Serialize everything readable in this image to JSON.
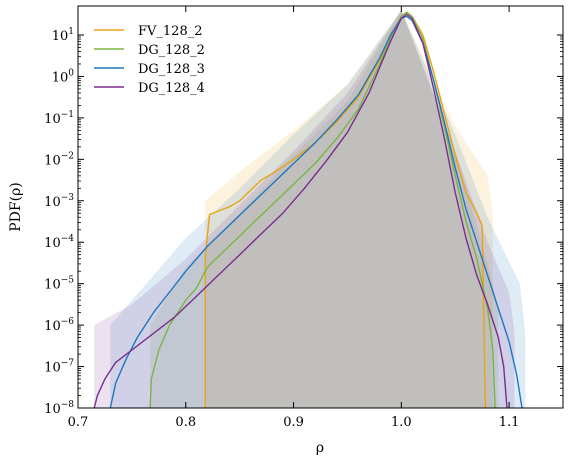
{
  "chart_data": {
    "type": "line",
    "title": "",
    "xlabel": "ρ",
    "ylabel": "PDF(ρ)",
    "xlim": [
      0.7,
      1.15
    ],
    "ylim_log10": [
      -8,
      1.7
    ],
    "y_scale": "log",
    "grid": false,
    "legend_position": "top-left",
    "x_ticks": [
      0.7,
      0.8,
      0.9,
      1.0,
      1.1
    ],
    "x_tick_labels": [
      "0.7",
      "0.8",
      "0.9",
      "1.0",
      "1.1"
    ],
    "y_ticks_log10": [
      1,
      0,
      -1,
      -2,
      -3,
      -4,
      -5,
      -6,
      -7,
      -8
    ],
    "y_tick_labels": [
      {
        "base": "10",
        "exp": "1"
      },
      {
        "base": "10",
        "exp": "0"
      },
      {
        "base": "10",
        "exp": "−1"
      },
      {
        "base": "10",
        "exp": "−2"
      },
      {
        "base": "10",
        "exp": "−3"
      },
      {
        "base": "10",
        "exp": "−4"
      },
      {
        "base": "10",
        "exp": "−5"
      },
      {
        "base": "10",
        "exp": "−6"
      },
      {
        "base": "10",
        "exp": "−7"
      },
      {
        "base": "10",
        "exp": "−8"
      }
    ],
    "series": [
      {
        "name": "FV_128_2",
        "color": "#e8a317",
        "points": [
          [
            0.818,
            -8
          ],
          [
            0.818,
            -4.38
          ],
          [
            0.822,
            -3.33
          ],
          [
            0.83,
            -3.25
          ],
          [
            0.84,
            -3.15
          ],
          [
            0.85,
            -3.0
          ],
          [
            0.86,
            -2.75
          ],
          [
            0.87,
            -2.5
          ],
          [
            0.88,
            -2.35
          ],
          [
            0.9,
            -2.0
          ],
          [
            0.92,
            -1.6
          ],
          [
            0.94,
            -1.1
          ],
          [
            0.96,
            -0.5
          ],
          [
            0.98,
            0.4
          ],
          [
            0.99,
            1.0
          ],
          [
            1.0,
            1.45
          ],
          [
            1.005,
            1.55
          ],
          [
            1.01,
            1.45
          ],
          [
            1.02,
            1.0
          ],
          [
            1.03,
            0.1
          ],
          [
            1.04,
            -0.9
          ],
          [
            1.05,
            -1.9
          ],
          [
            1.06,
            -2.8
          ],
          [
            1.07,
            -3.3
          ],
          [
            1.075,
            -3.6
          ],
          [
            1.078,
            -8
          ]
        ],
        "band": [
          [
            0.818,
            -3.0
          ],
          [
            0.85,
            -2.3
          ],
          [
            0.9,
            -1.3
          ],
          [
            0.95,
            -0.2
          ],
          [
            1.0,
            1.6
          ],
          [
            1.05,
            -1.2
          ],
          [
            1.08,
            -2.4
          ],
          [
            1.085,
            -3.3
          ]
        ]
      },
      {
        "name": "DG_128_2",
        "color": "#7cb342",
        "points": [
          [
            0.767,
            -8
          ],
          [
            0.768,
            -7.3
          ],
          [
            0.775,
            -6.6
          ],
          [
            0.785,
            -6.0
          ],
          [
            0.8,
            -5.4
          ],
          [
            0.81,
            -5.1
          ],
          [
            0.82,
            -4.6
          ],
          [
            0.84,
            -4.1
          ],
          [
            0.86,
            -3.6
          ],
          [
            0.88,
            -3.1
          ],
          [
            0.9,
            -2.6
          ],
          [
            0.92,
            -2.1
          ],
          [
            0.94,
            -1.5
          ],
          [
            0.96,
            -0.8
          ],
          [
            0.98,
            0.3
          ],
          [
            0.99,
            0.95
          ],
          [
            1.0,
            1.45
          ],
          [
            1.005,
            1.55
          ],
          [
            1.01,
            1.45
          ],
          [
            1.02,
            0.9
          ],
          [
            1.03,
            -0.1
          ],
          [
            1.04,
            -1.2
          ],
          [
            1.05,
            -2.4
          ],
          [
            1.06,
            -3.5
          ],
          [
            1.07,
            -4.4
          ],
          [
            1.08,
            -5.6
          ],
          [
            1.085,
            -6.6
          ],
          [
            1.087,
            -8
          ]
        ],
        "band": [
          [
            0.767,
            -6.0
          ],
          [
            0.8,
            -4.6
          ],
          [
            0.85,
            -3.3
          ],
          [
            0.9,
            -1.9
          ],
          [
            0.95,
            -0.6
          ],
          [
            1.0,
            1.6
          ],
          [
            1.05,
            -1.8
          ],
          [
            1.08,
            -4.5
          ],
          [
            1.09,
            -5.6
          ]
        ]
      },
      {
        "name": "DG_128_3",
        "color": "#1f77c0",
        "points": [
          [
            0.73,
            -8
          ],
          [
            0.735,
            -7.4
          ],
          [
            0.745,
            -6.8
          ],
          [
            0.755,
            -6.3
          ],
          [
            0.77,
            -5.7
          ],
          [
            0.785,
            -5.2
          ],
          [
            0.8,
            -4.7
          ],
          [
            0.82,
            -4.1
          ],
          [
            0.84,
            -3.6
          ],
          [
            0.86,
            -3.1
          ],
          [
            0.88,
            -2.6
          ],
          [
            0.9,
            -2.1
          ],
          [
            0.92,
            -1.6
          ],
          [
            0.94,
            -1.05
          ],
          [
            0.96,
            -0.45
          ],
          [
            0.98,
            0.45
          ],
          [
            0.99,
            1.0
          ],
          [
            1.0,
            1.4
          ],
          [
            1.005,
            1.45
          ],
          [
            1.01,
            1.35
          ],
          [
            1.02,
            0.8
          ],
          [
            1.03,
            -0.1
          ],
          [
            1.04,
            -1.1
          ],
          [
            1.05,
            -2.2
          ],
          [
            1.06,
            -3.2
          ],
          [
            1.07,
            -4.0
          ],
          [
            1.08,
            -4.8
          ],
          [
            1.09,
            -5.6
          ],
          [
            1.1,
            -6.4
          ],
          [
            1.107,
            -7.2
          ],
          [
            1.112,
            -8
          ]
        ],
        "band": [
          [
            0.73,
            -6.0
          ],
          [
            0.75,
            -5.4
          ],
          [
            0.8,
            -3.9
          ],
          [
            0.85,
            -2.7
          ],
          [
            0.9,
            -1.4
          ],
          [
            0.95,
            -0.2
          ],
          [
            1.0,
            1.6
          ],
          [
            1.05,
            -1.4
          ],
          [
            1.08,
            -3.4
          ],
          [
            1.11,
            -5.0
          ],
          [
            1.115,
            -6.2
          ]
        ]
      },
      {
        "name": "DG_128_4",
        "color": "#7b2d8e",
        "points": [
          [
            0.715,
            -8
          ],
          [
            0.718,
            -7.7
          ],
          [
            0.725,
            -7.3
          ],
          [
            0.735,
            -6.9
          ],
          [
            0.75,
            -6.6
          ],
          [
            0.77,
            -6.2
          ],
          [
            0.79,
            -5.8
          ],
          [
            0.81,
            -5.3
          ],
          [
            0.83,
            -4.8
          ],
          [
            0.85,
            -4.3
          ],
          [
            0.87,
            -3.8
          ],
          [
            0.89,
            -3.3
          ],
          [
            0.91,
            -2.7
          ],
          [
            0.93,
            -2.05
          ],
          [
            0.95,
            -1.35
          ],
          [
            0.97,
            -0.4
          ],
          [
            0.99,
            0.85
          ],
          [
            1.0,
            1.4
          ],
          [
            1.005,
            1.5
          ],
          [
            1.01,
            1.4
          ],
          [
            1.02,
            0.8
          ],
          [
            1.03,
            -0.3
          ],
          [
            1.04,
            -1.5
          ],
          [
            1.05,
            -2.8
          ],
          [
            1.06,
            -3.9
          ],
          [
            1.07,
            -4.8
          ],
          [
            1.08,
            -5.5
          ],
          [
            1.09,
            -6.3
          ],
          [
            1.095,
            -7.0
          ],
          [
            1.098,
            -8
          ]
        ],
        "band": [
          [
            0.715,
            -6.0
          ],
          [
            0.75,
            -5.5
          ],
          [
            0.8,
            -4.4
          ],
          [
            0.85,
            -3.1
          ],
          [
            0.9,
            -1.8
          ],
          [
            0.95,
            -0.4
          ],
          [
            1.0,
            1.6
          ],
          [
            1.05,
            -1.8
          ],
          [
            1.08,
            -4.0
          ],
          [
            1.1,
            -5.2
          ],
          [
            1.105,
            -6.2
          ]
        ]
      }
    ]
  }
}
